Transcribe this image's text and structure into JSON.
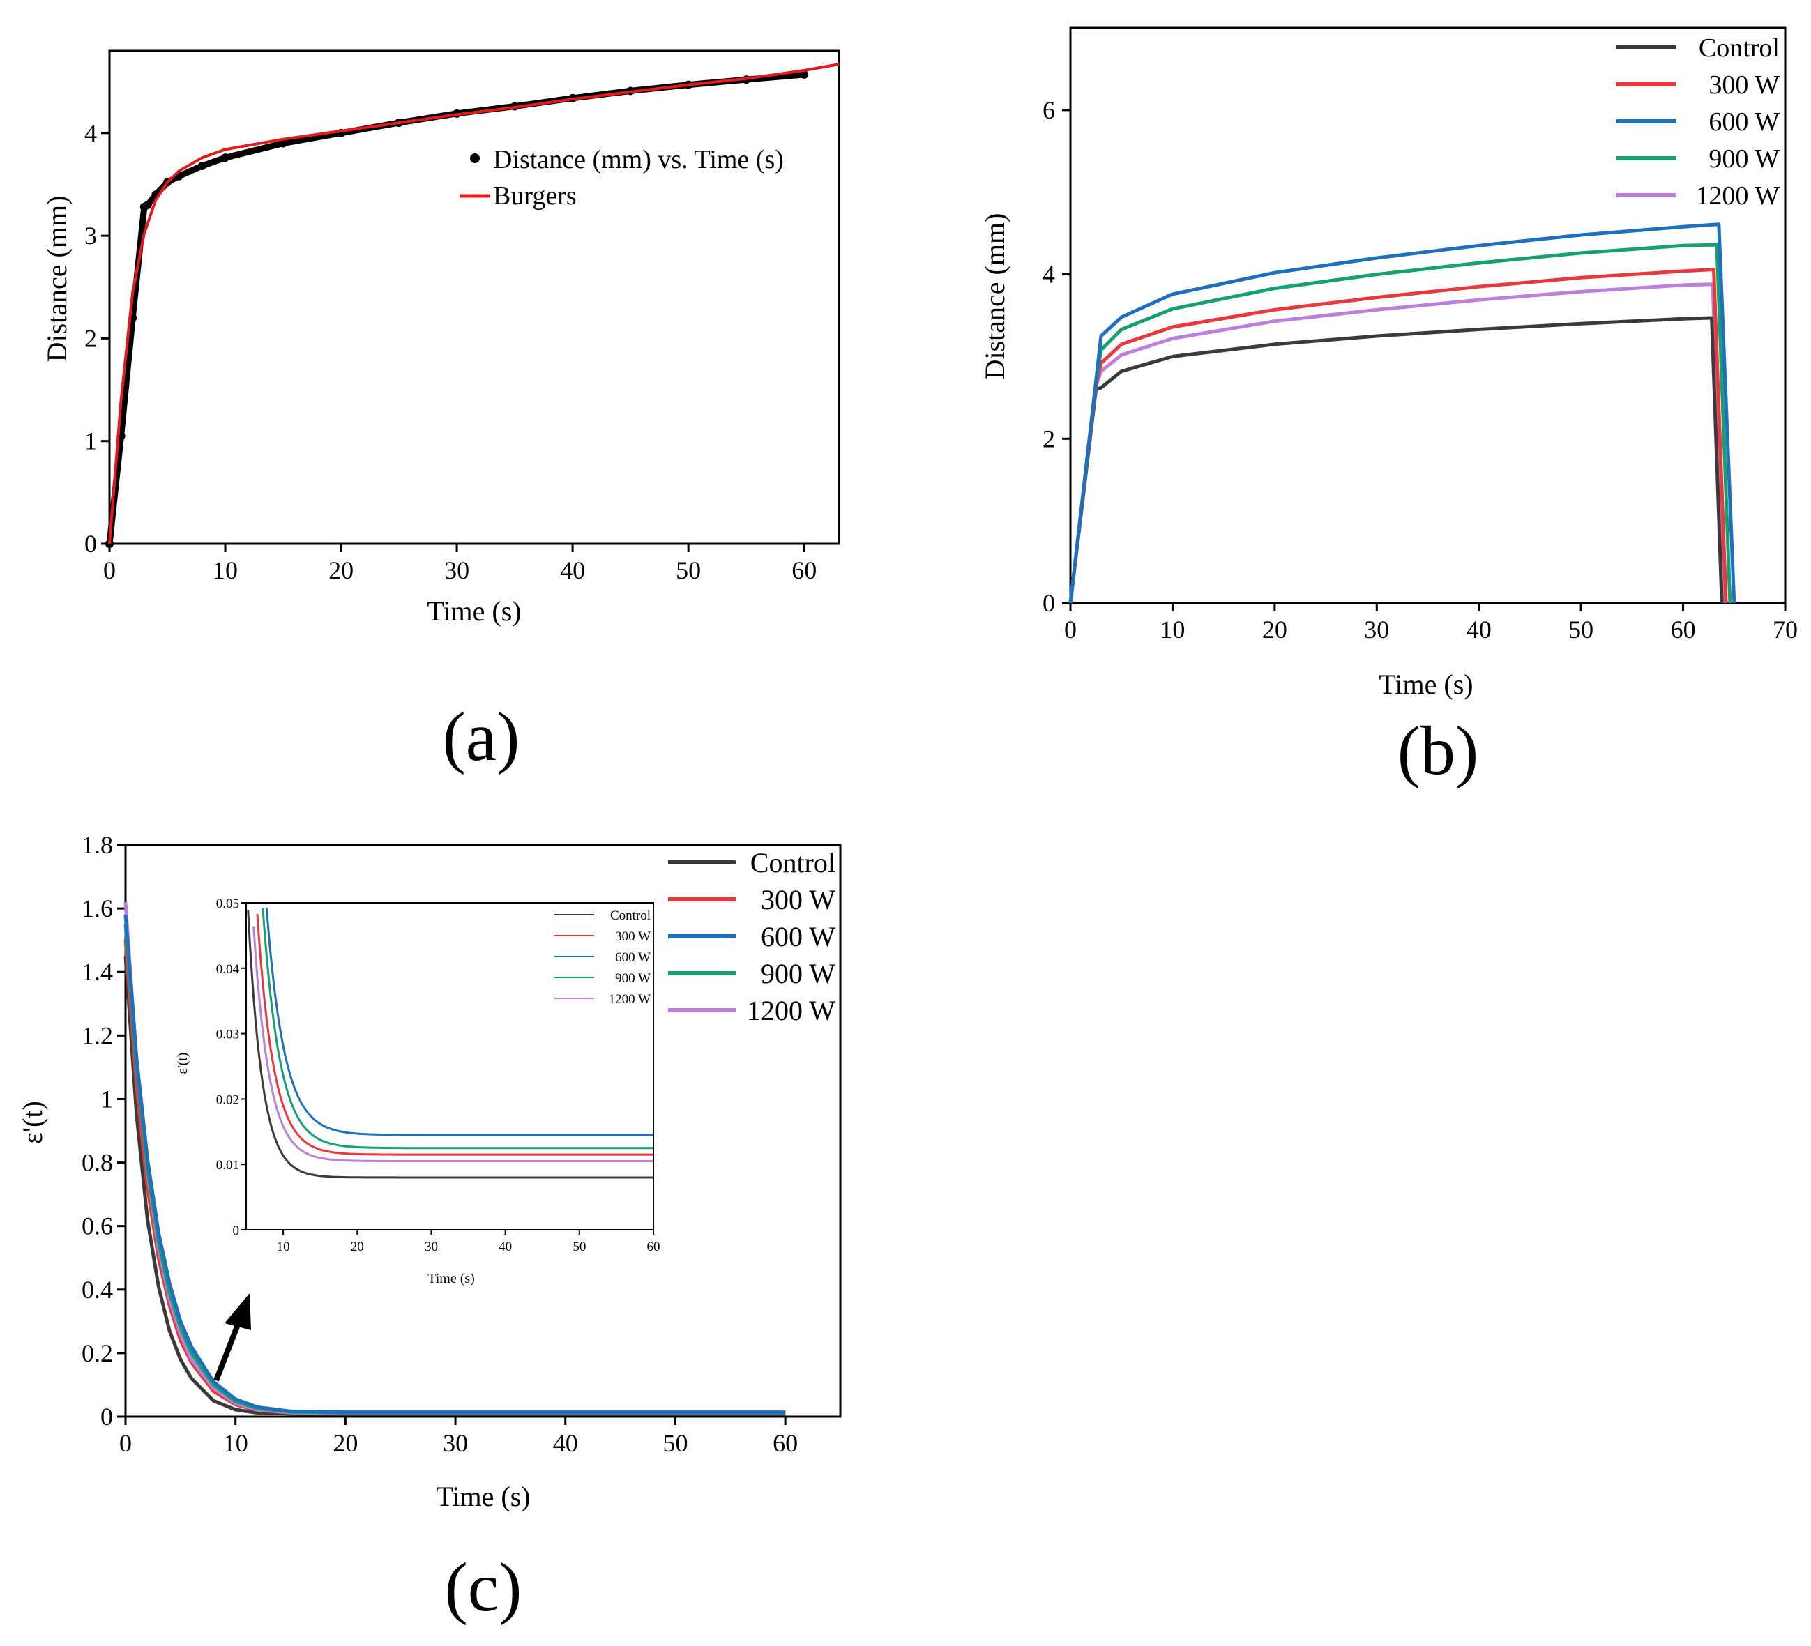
{
  "panels": [
    {
      "id": "a",
      "label": "(a)",
      "chart_data": {
        "type": "line",
        "title": "",
        "xlabel": "Time (s)",
        "ylabel": "Distance (mm)",
        "xlim": [
          0,
          63
        ],
        "ylim": [
          0,
          4.8
        ],
        "xticks": [
          0,
          10,
          20,
          30,
          40,
          50,
          60
        ],
        "yticks": [
          0,
          1,
          2,
          3,
          4
        ],
        "legend_position": "center-right",
        "series": [
          {
            "name": "Distance (mm) vs. Time (s)",
            "style": "scatter-line",
            "color": "#000000",
            "x": [
              0,
              1,
              2,
              3,
              3.3,
              4,
              5,
              6,
              8,
              10,
              15,
              20,
              25,
              30,
              35,
              40,
              45,
              50,
              55,
              60
            ],
            "y": [
              0,
              1.05,
              2.2,
              3.28,
              3.3,
              3.4,
              3.52,
              3.58,
              3.68,
              3.76,
              3.9,
              4.0,
              4.1,
              4.19,
              4.26,
              4.34,
              4.41,
              4.47,
              4.52,
              4.57
            ]
          },
          {
            "name": "Burgers",
            "style": "line",
            "color": "#e41a1c",
            "x": [
              0,
              1,
              2,
              3,
              4,
              5,
              6,
              8,
              10,
              15,
              20,
              25,
              30,
              35,
              40,
              45,
              50,
              55,
              60,
              63
            ],
            "y": [
              0,
              1.4,
              2.45,
              3.02,
              3.35,
              3.52,
              3.63,
              3.76,
              3.84,
              3.94,
              4.02,
              4.1,
              4.18,
              4.25,
              4.33,
              4.4,
              4.47,
              4.53,
              4.61,
              4.67
            ]
          }
        ]
      }
    },
    {
      "id": "b",
      "label": "(b)",
      "chart_data": {
        "type": "line",
        "title": "",
        "xlabel": "Time (s)",
        "ylabel": "Distance (mm)",
        "xlim": [
          0,
          70
        ],
        "ylim": [
          0,
          7
        ],
        "xticks": [
          0,
          10,
          20,
          30,
          40,
          50,
          60,
          70
        ],
        "yticks": [
          0,
          2,
          4,
          6
        ],
        "legend_position": "top-right",
        "series": [
          {
            "name": "Control",
            "color": "#3a3a3a",
            "x": [
              0,
              2.5,
              3,
              5,
              10,
              20,
              30,
              40,
              50,
              60,
              62.8,
              63.8
            ],
            "y": [
              0,
              2.6,
              2.62,
              2.82,
              3.0,
              3.15,
              3.25,
              3.33,
              3.4,
              3.46,
              3.47,
              0
            ]
          },
          {
            "name": "300 W",
            "color": "#e8383d",
            "x": [
              0,
              2.5,
              3,
              5,
              10,
              20,
              30,
              40,
              50,
              60,
              63.0,
              64.2
            ],
            "y": [
              0,
              2.65,
              2.92,
              3.15,
              3.36,
              3.57,
              3.72,
              3.85,
              3.96,
              4.04,
              4.06,
              0
            ]
          },
          {
            "name": "600 W",
            "color": "#1f6fbf",
            "x": [
              0,
              2.5,
              3,
              5,
              10,
              20,
              30,
              40,
              50,
              60,
              63.5,
              65.0
            ],
            "y": [
              0,
              2.7,
              3.25,
              3.48,
              3.76,
              4.02,
              4.2,
              4.35,
              4.48,
              4.58,
              4.61,
              0
            ]
          },
          {
            "name": "900 W",
            "color": "#16a070",
            "x": [
              0,
              2.5,
              3,
              5,
              10,
              20,
              30,
              40,
              50,
              60,
              63.3,
              64.6
            ],
            "y": [
              0,
              2.68,
              3.08,
              3.33,
              3.58,
              3.83,
              4.0,
              4.14,
              4.26,
              4.35,
              4.36,
              0
            ]
          },
          {
            "name": "1200 W",
            "color": "#bd7fdc",
            "x": [
              0,
              2.5,
              3,
              5,
              10,
              20,
              30,
              40,
              50,
              60,
              62.9,
              64.0
            ],
            "y": [
              0,
              2.64,
              2.82,
              3.02,
              3.22,
              3.43,
              3.57,
              3.69,
              3.79,
              3.87,
              3.88,
              0
            ]
          }
        ]
      }
    },
    {
      "id": "c",
      "label": "(c)",
      "chart_data": {
        "type": "line",
        "title": "",
        "xlabel": "Time (s)",
        "ylabel": "ε'(t)",
        "xlim": [
          0,
          65
        ],
        "ylim": [
          0,
          1.8
        ],
        "xticks": [
          0,
          10,
          20,
          30,
          40,
          50,
          60
        ],
        "yticks": [
          0,
          0.2,
          0.4,
          0.6,
          0.8,
          1,
          1.2,
          1.4,
          1.6,
          1.8
        ],
        "yticklabels": [
          "0",
          "0.2",
          "0.4",
          "0.6",
          "0.8",
          "1",
          "1.2",
          "1.4",
          "1.6",
          "1.8"
        ],
        "legend_position": "top-right",
        "annotation": "arrow pointing to inset",
        "series": [
          {
            "name": "Control",
            "color": "#3a3a3a",
            "x": [
              0,
              1,
              2,
              3,
              4,
              5,
              6,
              8,
              10,
              12,
              15,
              20,
              30,
              40,
              50,
              60
            ],
            "y": [
              1.45,
              0.95,
              0.62,
              0.41,
              0.27,
              0.18,
              0.12,
              0.05,
              0.022,
              0.012,
              0.009,
              0.008,
              0.008,
              0.008,
              0.008,
              0.008
            ]
          },
          {
            "name": "300 W",
            "color": "#e8383d",
            "x": [
              0,
              1,
              2,
              3,
              4,
              5,
              6,
              8,
              10,
              12,
              15,
              20,
              30,
              40,
              50,
              60
            ],
            "y": [
              1.5,
              1.04,
              0.72,
              0.5,
              0.35,
              0.24,
              0.17,
              0.08,
              0.038,
              0.02,
              0.013,
              0.011,
              0.011,
              0.011,
              0.011,
              0.011
            ]
          },
          {
            "name": "600 W",
            "color": "#1f6fbf",
            "x": [
              0,
              1,
              2,
              3,
              4,
              5,
              6,
              8,
              10,
              12,
              15,
              20,
              30,
              40,
              50,
              60
            ],
            "y": [
              1.58,
              1.13,
              0.81,
              0.58,
              0.42,
              0.3,
              0.22,
              0.11,
              0.055,
              0.03,
              0.017,
              0.014,
              0.014,
              0.014,
              0.014,
              0.014
            ]
          },
          {
            "name": "900 W",
            "color": "#16a070",
            "x": [
              0,
              1,
              2,
              3,
              4,
              5,
              6,
              8,
              10,
              12,
              15,
              20,
              30,
              40,
              50,
              60
            ],
            "y": [
              1.55,
              1.1,
              0.78,
              0.55,
              0.39,
              0.28,
              0.2,
              0.1,
              0.048,
              0.026,
              0.015,
              0.012,
              0.012,
              0.012,
              0.012,
              0.012
            ]
          },
          {
            "name": "1200 W",
            "color": "#bd7fdc",
            "x": [
              0,
              1,
              2,
              3,
              4,
              5,
              6,
              8,
              10,
              12,
              15,
              20,
              30,
              40,
              50,
              60
            ],
            "y": [
              1.62,
              1.12,
              0.77,
              0.53,
              0.37,
              0.26,
              0.18,
              0.09,
              0.042,
              0.022,
              0.013,
              0.01,
              0.01,
              0.01,
              0.01,
              0.01
            ]
          }
        ],
        "inset": {
          "xlabel": "Time (s)",
          "ylabel": "ε'(t)",
          "xlim": [
            5,
            60
          ],
          "ylim": [
            0,
            0.05
          ],
          "xticks": [
            10,
            20,
            30,
            40,
            50,
            60
          ],
          "yticks": [
            0,
            0.01,
            0.02,
            0.03,
            0.04,
            0.05
          ],
          "yticklabels": [
            "0",
            "0.01",
            "0.02",
            "0.03",
            "0.04",
            "0.05"
          ],
          "legend_position": "top-right",
          "series": [
            {
              "name": "Control",
              "color": "#3a3a3a",
              "tau": 1.9,
              "t0": 5.2,
              "y_inf": 0.008
            },
            {
              "name": "300 W",
              "color": "#e8383d",
              "tau": 2.2,
              "t0": 6.4,
              "y_inf": 0.0115
            },
            {
              "name": "600 W",
              "color": "#1f6fbf",
              "tau": 2.4,
              "t0": 7.7,
              "y_inf": 0.0145
            },
            {
              "name": "900 W",
              "color": "#16a070",
              "tau": 2.3,
              "t0": 7.2,
              "y_inf": 0.0125
            },
            {
              "name": "1200 W",
              "color": "#bd7fdc",
              "tau": 2.1,
              "t0": 5.8,
              "y_inf": 0.0105
            }
          ]
        }
      }
    }
  ]
}
